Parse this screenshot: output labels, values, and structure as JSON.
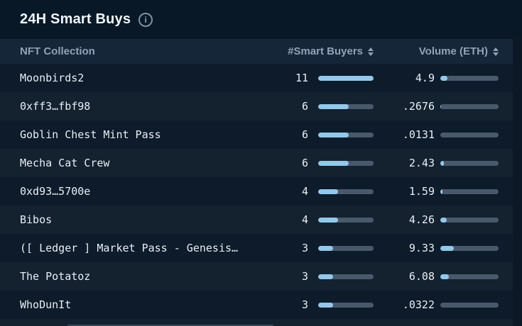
{
  "header": {
    "title": "24H Smart Buys",
    "info_glyph": "i"
  },
  "table": {
    "columns": [
      {
        "label": "NFT Collection",
        "sortable": false
      },
      {
        "label": "#Smart Buyers",
        "sortable": true
      },
      {
        "label": "Volume (ETH)",
        "sortable": true
      }
    ],
    "scales": {
      "buyers_max": 11,
      "volume_max": 40
    },
    "rows": [
      {
        "name": "Moonbirds2",
        "buyers": 11,
        "volume": "4.9"
      },
      {
        "name": "0xff3…fbf98",
        "buyers": 6,
        "volume": ".2676"
      },
      {
        "name": "Goblin Chest Mint Pass",
        "buyers": 6,
        "volume": ".0131"
      },
      {
        "name": "Mecha Cat Crew",
        "buyers": 6,
        "volume": "2.43"
      },
      {
        "name": "0xd93…5700e",
        "buyers": 4,
        "volume": "1.59"
      },
      {
        "name": "Bibos",
        "buyers": 4,
        "volume": "4.26"
      },
      {
        "name": "([ Ledger ] Market Pass - Genesis…",
        "buyers": 3,
        "volume": "9.33"
      },
      {
        "name": "The Potatoz",
        "buyers": 3,
        "volume": "6.08"
      },
      {
        "name": "WhoDunIt",
        "buyers": 3,
        "volume": ".0322"
      }
    ]
  },
  "colors": {
    "page_bg": "#081827",
    "header_bg": "#152639",
    "row_odd": "#0d1b2a",
    "row_even": "#142230",
    "bar_fill": "#90c9ec",
    "bar_track": "#49586a",
    "accent_text": "#8fa2b6",
    "row_text": "#e9eef4",
    "title_text": "#f2f6fa"
  }
}
